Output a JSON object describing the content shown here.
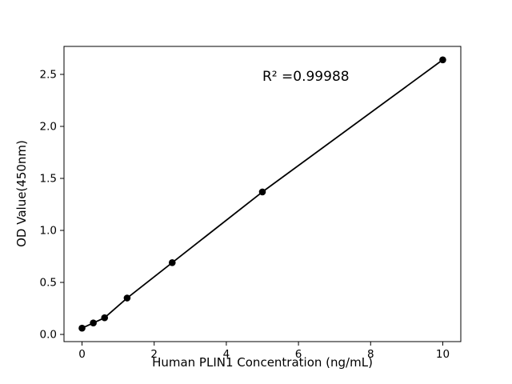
{
  "chart_data": {
    "type": "scatter",
    "title": "",
    "xlabel": "Human PLIN1 Concentration (ng/mL)",
    "ylabel": "OD Value(450nm)",
    "annotation": {
      "text": "R² =0.99988",
      "x": 5.0,
      "y": 2.42
    },
    "x": [
      0,
      0.3125,
      0.625,
      1.25,
      2.5,
      5,
      10
    ],
    "y": [
      0.06,
      0.11,
      0.16,
      0.35,
      0.69,
      1.37,
      2.64
    ],
    "line": true,
    "legend": null,
    "grid": false,
    "xlim": [
      -0.5,
      10.5
    ],
    "ylim": [
      -0.069,
      2.769
    ],
    "xticks": {
      "values": [
        0,
        2,
        4,
        6,
        8,
        10
      ],
      "labels": [
        "0",
        "2",
        "4",
        "6",
        "8",
        "10"
      ]
    },
    "yticks": {
      "values": [
        0,
        0.5,
        1.0,
        1.5,
        2.0,
        2.5
      ],
      "labels": [
        "0.0",
        "0.5",
        "1.0",
        "1.5",
        "2.0",
        "2.5"
      ]
    },
    "colors": {
      "marker": "#000000",
      "line": "#000000",
      "axis": "#000000",
      "tick_label": "#000000",
      "background": "#ffffff"
    }
  }
}
